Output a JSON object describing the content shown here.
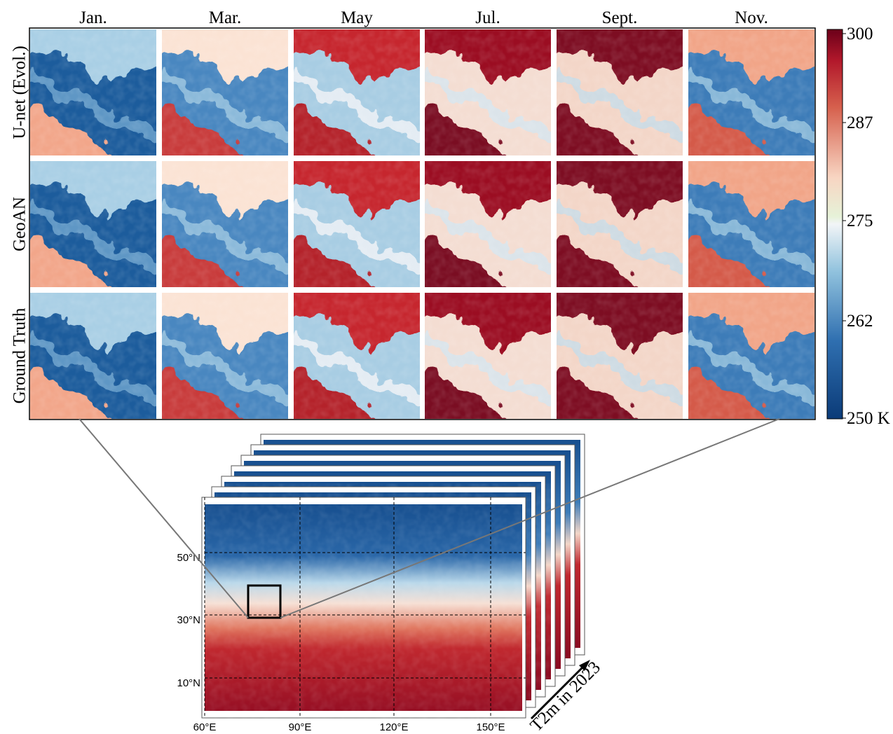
{
  "columns": [
    "Jan.",
    "Mar.",
    "May",
    "Jul.",
    "Sept.",
    "Nov."
  ],
  "rows": [
    "U-net (Evol.)",
    "GeoAN",
    "Ground Truth"
  ],
  "colorbar": {
    "ticks": [
      "300",
      "287",
      "275",
      "262",
      "250 K"
    ]
  },
  "map": {
    "lat_labels": [
      "50°N",
      "30°N",
      "10°N"
    ],
    "lon_labels": [
      "60°E",
      "90°E",
      "120°E",
      "150°E"
    ],
    "stack_label": "T2m in 2023"
  }
}
